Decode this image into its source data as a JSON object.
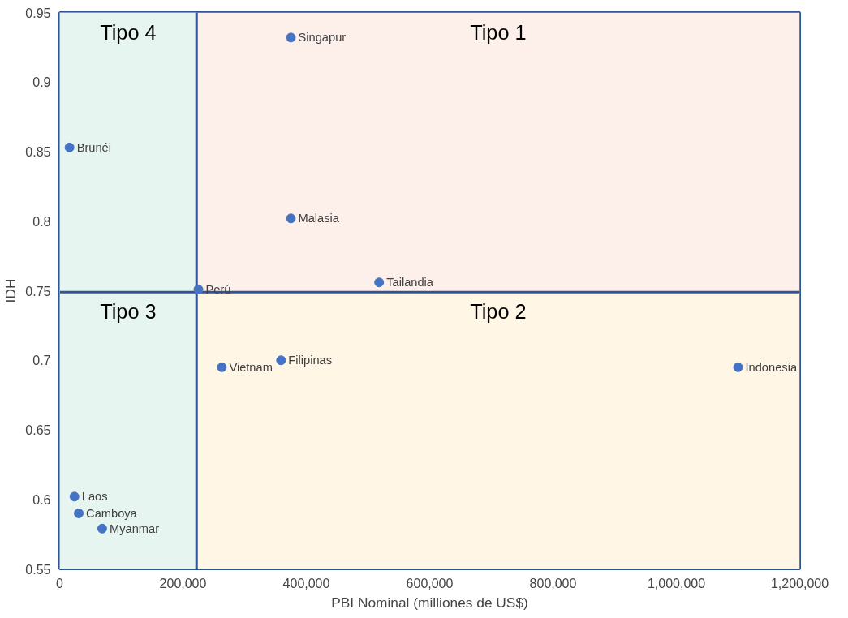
{
  "chart_data": {
    "type": "scatter",
    "xlabel": "PBI Nominal (milliones de US$)",
    "ylabel": "IDH",
    "x": [
      375000,
      16000,
      375000,
      225000,
      518000,
      263000,
      359000,
      1100000,
      24000,
      31000,
      69000
    ],
    "values": [
      0.932,
      0.853,
      0.802,
      0.751,
      0.756,
      0.695,
      0.7,
      0.695,
      0.602,
      0.59,
      0.579
    ],
    "value_labels": [
      "Singapur",
      "Brunéi",
      "Malasia",
      "Perú",
      "Tailandia",
      "Vietnam",
      "Filipinas",
      "Indonesia",
      "Laos",
      "Camboya",
      "Myanmar"
    ],
    "color": "#4472c4",
    "marker": "circle",
    "xlim": [
      0,
      1200000
    ],
    "ylim": [
      0.55,
      0.95
    ],
    "xticks": [
      {
        "value": 0,
        "label": "0"
      },
      {
        "value": 200000,
        "label": "200,000"
      },
      {
        "value": 400000,
        "label": "400,000"
      },
      {
        "value": 600000,
        "label": "600,000"
      },
      {
        "value": 800000,
        "label": "800,000"
      },
      {
        "value": 1000000,
        "label": "1,000,000"
      },
      {
        "value": 1200000,
        "label": "1,200,000"
      }
    ],
    "yticks": [
      0.55,
      0.6,
      0.65,
      0.7,
      0.75,
      0.8,
      0.85,
      0.9,
      0.95
    ],
    "bands": [
      {
        "axis": "y",
        "from": 0.749,
        "to": 0.95,
        "color": "#fdf0ea"
      },
      {
        "axis": "y",
        "from": 0.55,
        "to": 0.749,
        "color": "#fff6e5"
      },
      {
        "axis": "x",
        "from": 0,
        "to": 222000,
        "color": "#e6f5f0"
      }
    ],
    "ref_lines": [
      {
        "axis": "x",
        "value": 222000,
        "color": "#2f5597"
      },
      {
        "axis": "y",
        "value": 0.749,
        "color": "#2f5597"
      }
    ],
    "annotations": [
      "Tipo 1",
      "Tipo 2",
      "Tipo 3",
      "Tipo 4"
    ],
    "grid": false
  }
}
